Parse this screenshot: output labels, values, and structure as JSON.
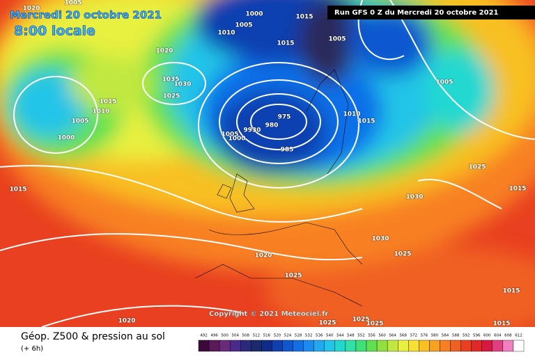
{
  "header": {
    "title": "Mercredi 20 octobre 2021",
    "subtitle": "8:00 locale",
    "run": "Run GFS 0 Z du Mercredi 20 octobre 2021"
  },
  "copyright": "Copyright © 2021 Meteociel.fr",
  "isobar_labels": [
    1020,
    1005,
    1000,
    1005,
    1015,
    1010,
    1015,
    1005,
    1020,
    1035,
    1030,
    1025,
    1015,
    1010,
    1005,
    1000,
    975,
    980,
    9930,
    1005,
    1000,
    985,
    1010,
    1015,
    1005,
    1025,
    1015,
    1030,
    1030,
    1025,
    1020,
    1025,
    1015,
    1015,
    1020,
    1025,
    1025,
    1025,
    1015
  ],
  "footer": {
    "title": "Géop. Z500 & pression au sol",
    "lead": "(+ 6h)"
  },
  "colorbar": {
    "levels": [
      492,
      496,
      500,
      504,
      508,
      512,
      516,
      520,
      524,
      528,
      532,
      536,
      540,
      544,
      548,
      552,
      556,
      560,
      564,
      568,
      572,
      576,
      580,
      584,
      588,
      592,
      596,
      600,
      604,
      608,
      612
    ],
    "colors": [
      "#3a0a3a",
      "#5a1a5a",
      "#6a2a7a",
      "#4a2a8a",
      "#2a2a7a",
      "#1a2a6a",
      "#102c88",
      "#1040b0",
      "#1058d0",
      "#1070e8",
      "#1a8cf0",
      "#20a8f0",
      "#22c4e8",
      "#20d8d0",
      "#30e0a8",
      "#40e078",
      "#60e050",
      "#90e040",
      "#c0e840",
      "#e8f040",
      "#f8e030",
      "#f8c020",
      "#f8a020",
      "#f88020",
      "#f06020",
      "#e84020",
      "#e02828",
      "#d81840",
      "#e04080",
      "#f080c0",
      "#ffffff"
    ]
  }
}
